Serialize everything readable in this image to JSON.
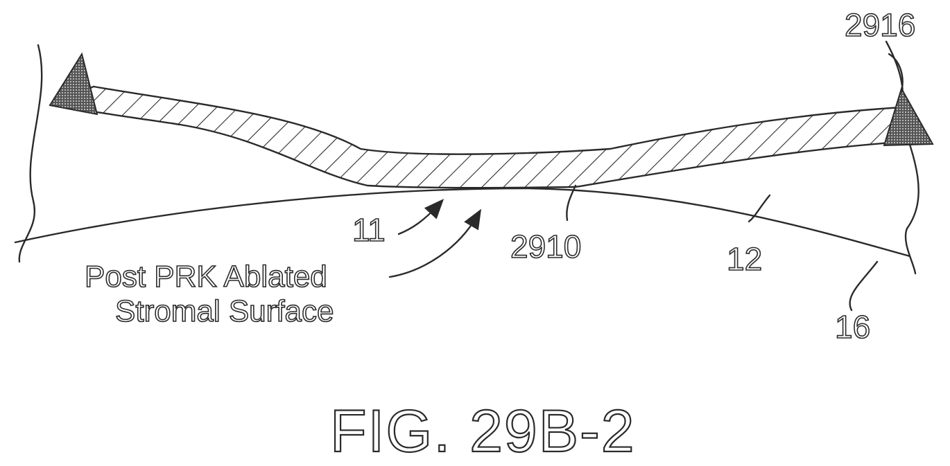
{
  "figure": {
    "title": "FIG. 29B-2"
  },
  "labels": {
    "ref_11": "11",
    "ref_12": "12",
    "ref_16": "16",
    "ref_2910": "2910",
    "ref_2916": "2916",
    "caption_line1": "Post PRK Ablated",
    "caption_line2": "Stromal Surface"
  }
}
